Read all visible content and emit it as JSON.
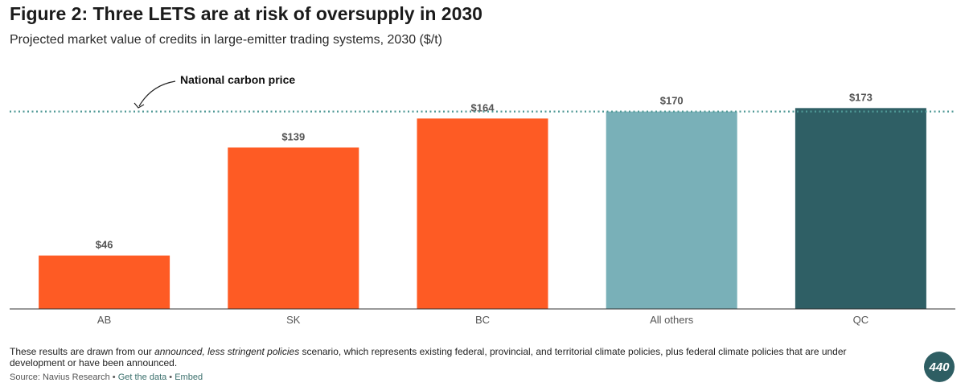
{
  "header": {
    "title": "Figure 2: Three LETS are at risk of oversupply in 2030",
    "subtitle": "Projected market value of credits in large-emitter trading systems, 2030 ($/t)"
  },
  "chart_data": {
    "type": "bar",
    "categories": [
      "AB",
      "SK",
      "BC",
      "All others",
      "QC"
    ],
    "values": [
      46,
      139,
      164,
      170,
      173
    ],
    "value_labels": [
      "$46",
      "$139",
      "$164",
      "$170",
      "$173"
    ],
    "colors": [
      "#fe5b24",
      "#fe5b24",
      "#fe5b24",
      "#79b0b8",
      "#2f5f65"
    ],
    "ylim": [
      0,
      176
    ],
    "reference_line": {
      "value": 170,
      "label": "National carbon price",
      "color": "#4f9896",
      "style": "dotted"
    },
    "title": "Figure 2: Three LETS are at risk of oversupply in 2030",
    "subtitle": "Projected market value of credits in large-emitter trading systems, 2030 ($/t)",
    "xlabel": "",
    "ylabel": "",
    "grid": false,
    "legend": "none"
  },
  "footer": {
    "note_pre": "These results are drawn from our ",
    "note_em": "announced, less stringent policies",
    "note_post": " scenario, which represents existing federal, provincial, and territorial climate policies, plus federal climate policies that are under development or have been announced.",
    "source_text": "Source: Navius Research",
    "sep1": " • ",
    "get_data": "Get the data",
    "sep2": " • ",
    "embed": "Embed",
    "logo_text": "440"
  }
}
